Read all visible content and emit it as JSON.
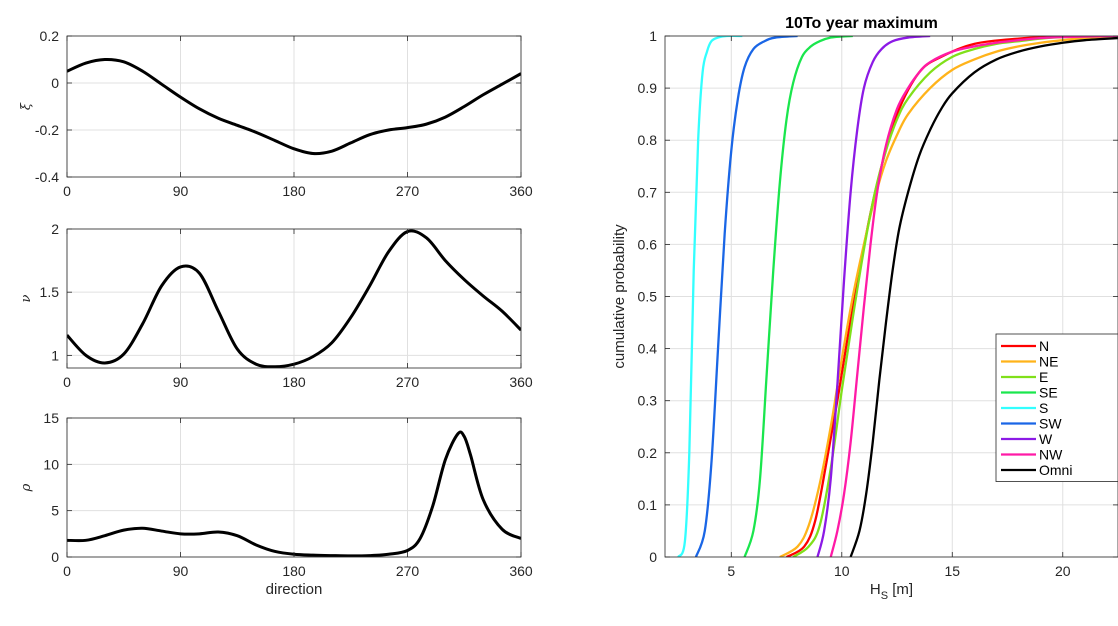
{
  "chart_data": [
    {
      "type": "line",
      "ylabel": "ξ",
      "xlim": [
        0,
        360
      ],
      "ylim": [
        -0.4,
        0.2
      ],
      "xticks": [
        0,
        90,
        180,
        270,
        360
      ],
      "xtick_labels": [
        "0",
        "90",
        "180",
        "270",
        "360"
      ],
      "yticks": [
        -0.4,
        -0.2,
        0,
        0.2
      ],
      "ytick_labels": [
        "-0.4",
        "-0.2",
        "0",
        "0.2"
      ],
      "grid": true,
      "series": [
        {
          "color": "#000000",
          "x": [
            0,
            15,
            30,
            45,
            60,
            75,
            90,
            105,
            120,
            135,
            150,
            165,
            180,
            195,
            210,
            225,
            240,
            255,
            270,
            285,
            300,
            315,
            330,
            345,
            360
          ],
          "y": [
            0.05,
            0.085,
            0.1,
            0.09,
            0.05,
            -0.005,
            -0.06,
            -0.11,
            -0.15,
            -0.18,
            -0.21,
            -0.245,
            -0.28,
            -0.3,
            -0.29,
            -0.255,
            -0.22,
            -0.2,
            -0.19,
            -0.175,
            -0.145,
            -0.1,
            -0.05,
            -0.005,
            0.04
          ]
        }
      ]
    },
    {
      "type": "line",
      "ylabel": "ν",
      "xlim": [
        0,
        360
      ],
      "ylim": [
        0.9,
        2.0
      ],
      "xticks": [
        0,
        90,
        180,
        270,
        360
      ],
      "xtick_labels": [
        "0",
        "90",
        "180",
        "270",
        "360"
      ],
      "yticks": [
        1,
        1.5,
        2
      ],
      "ytick_labels": [
        "1",
        "1.5",
        "2"
      ],
      "grid": true,
      "series": [
        {
          "color": "#000000",
          "x": [
            0,
            15,
            30,
            45,
            60,
            75,
            90,
            105,
            120,
            135,
            150,
            165,
            180,
            195,
            210,
            225,
            240,
            255,
            270,
            285,
            300,
            315,
            330,
            345,
            360
          ],
          "y": [
            1.16,
            1.0,
            0.94,
            1.01,
            1.25,
            1.55,
            1.7,
            1.65,
            1.35,
            1.05,
            0.93,
            0.91,
            0.93,
            0.99,
            1.1,
            1.3,
            1.55,
            1.82,
            1.98,
            1.93,
            1.75,
            1.6,
            1.47,
            1.35,
            1.2
          ]
        }
      ]
    },
    {
      "type": "line",
      "xlabel": "direction",
      "ylabel": "ρ",
      "xlim": [
        0,
        360
      ],
      "ylim": [
        0,
        15
      ],
      "xticks": [
        0,
        90,
        180,
        270,
        360
      ],
      "xtick_labels": [
        "0",
        "90",
        "180",
        "270",
        "360"
      ],
      "yticks": [
        0,
        5,
        10,
        15
      ],
      "ytick_labels": [
        "0",
        "5",
        "10",
        "15"
      ],
      "grid": true,
      "series": [
        {
          "color": "#000000",
          "x": [
            0,
            15,
            30,
            45,
            60,
            75,
            90,
            105,
            120,
            135,
            150,
            165,
            180,
            195,
            210,
            225,
            240,
            255,
            270,
            280,
            290,
            300,
            310,
            315,
            320,
            330,
            345,
            360
          ],
          "y": [
            1.8,
            1.8,
            2.3,
            2.9,
            3.1,
            2.8,
            2.5,
            2.5,
            2.7,
            2.3,
            1.3,
            0.6,
            0.3,
            0.2,
            0.15,
            0.12,
            0.15,
            0.3,
            0.7,
            2.0,
            5.5,
            10.5,
            13.3,
            13.0,
            11.0,
            6.2,
            3.0,
            2.0
          ]
        }
      ]
    },
    {
      "type": "line",
      "title": "10To year maximum",
      "xlabel": "H_S [m]",
      "ylabel": "cumulative probability",
      "xlim": [
        2,
        22.5
      ],
      "ylim": [
        0,
        1
      ],
      "xticks": [
        5,
        10,
        15,
        20
      ],
      "xtick_labels": [
        "5",
        "10",
        "15",
        "20"
      ],
      "yticks": [
        0,
        0.1,
        0.2,
        0.3,
        0.4,
        0.5,
        0.6,
        0.7,
        0.8,
        0.9,
        1
      ],
      "ytick_labels": [
        "0",
        "0.1",
        "0.2",
        "0.3",
        "0.4",
        "0.5",
        "0.6",
        "0.7",
        "0.8",
        "0.9",
        "1"
      ],
      "grid": true,
      "legend": "bottom-right",
      "series": [
        {
          "name": "N",
          "color": "#ff0000",
          "x": [
            7.5,
            8.3,
            8.8,
            9.3,
            9.8,
            10.3,
            10.8,
            11.3,
            11.8,
            12.5,
            13.5,
            14.5,
            16,
            18,
            20,
            22.5
          ],
          "y": [
            0,
            0.02,
            0.07,
            0.18,
            0.3,
            0.43,
            0.55,
            0.66,
            0.75,
            0.85,
            0.93,
            0.96,
            0.985,
            0.995,
            0.999,
            1
          ]
        },
        {
          "name": "NE",
          "color": "#ffb31a",
          "x": [
            7.2,
            8.0,
            8.5,
            9.0,
            9.5,
            10.0,
            10.5,
            11.0,
            11.5,
            12.0,
            12.5,
            13.0,
            14.0,
            15.0,
            16.0,
            17.0,
            18.0,
            19.0,
            20.0,
            21.0,
            22.5
          ],
          "y": [
            0,
            0.02,
            0.06,
            0.14,
            0.25,
            0.38,
            0.5,
            0.6,
            0.69,
            0.76,
            0.81,
            0.85,
            0.9,
            0.935,
            0.955,
            0.97,
            0.98,
            0.987,
            0.992,
            0.996,
            0.999
          ]
        },
        {
          "name": "E",
          "color": "#80e01a",
          "x": [
            7.8,
            8.5,
            9.0,
            9.5,
            10.0,
            10.5,
            11.0,
            11.5,
            12.0,
            12.5,
            13.0,
            14.0,
            15.0,
            16.0,
            17.0,
            18.0,
            19.0,
            20.0,
            22.5
          ],
          "y": [
            0,
            0.02,
            0.06,
            0.17,
            0.32,
            0.46,
            0.59,
            0.7,
            0.78,
            0.84,
            0.88,
            0.93,
            0.96,
            0.975,
            0.985,
            0.99,
            0.995,
            0.998,
            1
          ]
        },
        {
          "name": "SE",
          "color": "#1ae64d",
          "x": [
            5.6,
            6.0,
            6.3,
            6.6,
            6.9,
            7.2,
            7.5,
            7.8,
            8.2,
            8.6,
            9.0,
            9.5,
            10.0,
            10.5
          ],
          "y": [
            0,
            0.05,
            0.15,
            0.35,
            0.55,
            0.72,
            0.84,
            0.91,
            0.96,
            0.98,
            0.99,
            0.997,
            0.999,
            1
          ]
        },
        {
          "name": "S",
          "color": "#33ffff",
          "x": [
            2.6,
            2.9,
            3.1,
            3.3,
            3.5,
            3.7,
            3.9,
            4.1,
            4.4,
            4.8,
            5.5
          ],
          "y": [
            0,
            0.03,
            0.2,
            0.55,
            0.8,
            0.93,
            0.97,
            0.99,
            0.997,
            1,
            1
          ]
        },
        {
          "name": "SW",
          "color": "#1a66e6",
          "x": [
            3.4,
            3.8,
            4.1,
            4.4,
            4.7,
            5.0,
            5.3,
            5.6,
            6.0,
            6.5,
            7.0,
            8.0
          ],
          "y": [
            0,
            0.05,
            0.18,
            0.4,
            0.62,
            0.78,
            0.88,
            0.94,
            0.975,
            0.99,
            0.997,
            1
          ]
        },
        {
          "name": "W",
          "color": "#8c1ae6",
          "x": [
            8.9,
            9.2,
            9.5,
            9.8,
            10.1,
            10.4,
            10.7,
            11.0,
            11.4,
            11.8,
            12.3,
            13.0,
            14.0
          ],
          "y": [
            0,
            0.05,
            0.15,
            0.33,
            0.53,
            0.7,
            0.82,
            0.9,
            0.95,
            0.975,
            0.99,
            0.997,
            1
          ]
        },
        {
          "name": "NW",
          "color": "#ff1aa6",
          "x": [
            9.5,
            9.8,
            10.1,
            10.4,
            10.7,
            11.0,
            11.3,
            11.6,
            12.0,
            12.5,
            13.0,
            13.5,
            14.0,
            15.0,
            16.0,
            17.0,
            18.0,
            19.0,
            20.0,
            22.5
          ],
          "y": [
            0,
            0.05,
            0.12,
            0.22,
            0.35,
            0.48,
            0.6,
            0.7,
            0.79,
            0.86,
            0.9,
            0.93,
            0.95,
            0.97,
            0.98,
            0.987,
            0.992,
            0.996,
            0.998,
            1
          ]
        },
        {
          "name": "Omni",
          "color": "#000000",
          "x": [
            10.4,
            10.8,
            11.1,
            11.4,
            11.7,
            12.0,
            12.3,
            12.6,
            13.0,
            13.5,
            14.0,
            14.5,
            15.0,
            16.0,
            17.0,
            18.0,
            19.0,
            20.0,
            21.0,
            22.5
          ],
          "y": [
            0,
            0.05,
            0.12,
            0.22,
            0.34,
            0.45,
            0.55,
            0.63,
            0.7,
            0.77,
            0.82,
            0.86,
            0.89,
            0.93,
            0.955,
            0.97,
            0.98,
            0.987,
            0.992,
            0.996
          ]
        }
      ]
    }
  ]
}
